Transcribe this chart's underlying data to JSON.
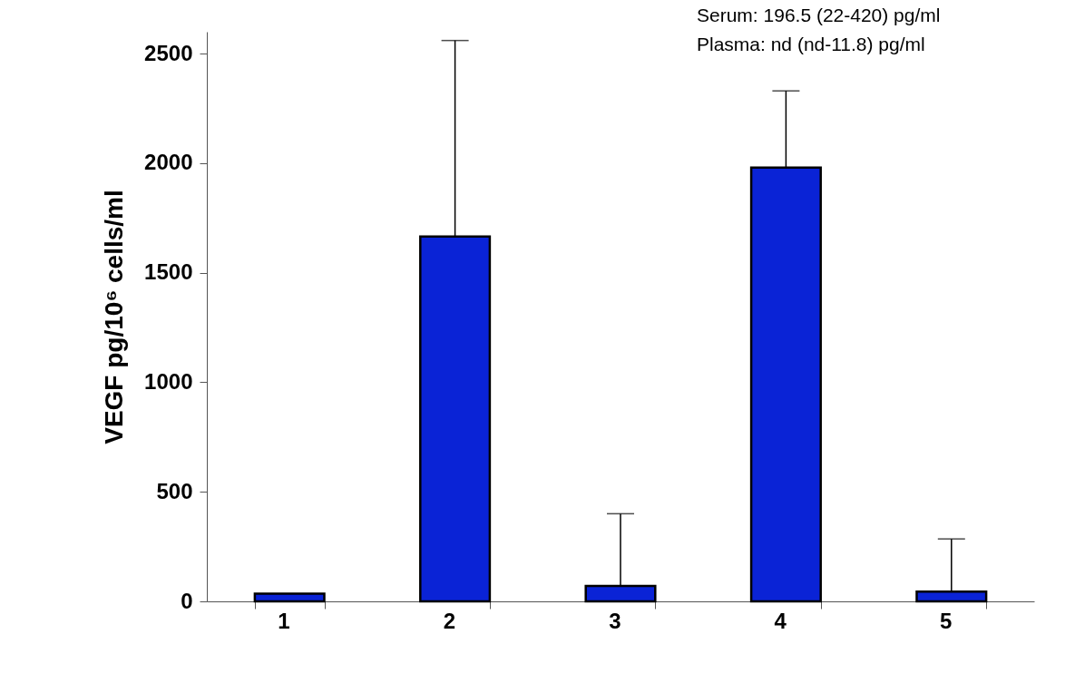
{
  "chart_data": {
    "type": "bar",
    "ylabel": "VEGF pg/10⁶ cells/ml",
    "categories": [
      "1",
      "2",
      "3",
      "4",
      "5"
    ],
    "values": [
      35,
      1665,
      70,
      1980,
      45
    ],
    "errors": [
      null,
      [
        1665,
        2560
      ],
      [
        70,
        400
      ],
      [
        1980,
        2330
      ],
      [
        45,
        285
      ]
    ],
    "color": "#0a23d6",
    "ylim": [
      0,
      2600
    ],
    "yticks": [
      0,
      500,
      1000,
      1500,
      2000,
      2500
    ],
    "annotations": [
      "Serum: 196.5 (22-420) pg/ml",
      "Plasma: nd (nd-11.8) pg/ml"
    ]
  }
}
